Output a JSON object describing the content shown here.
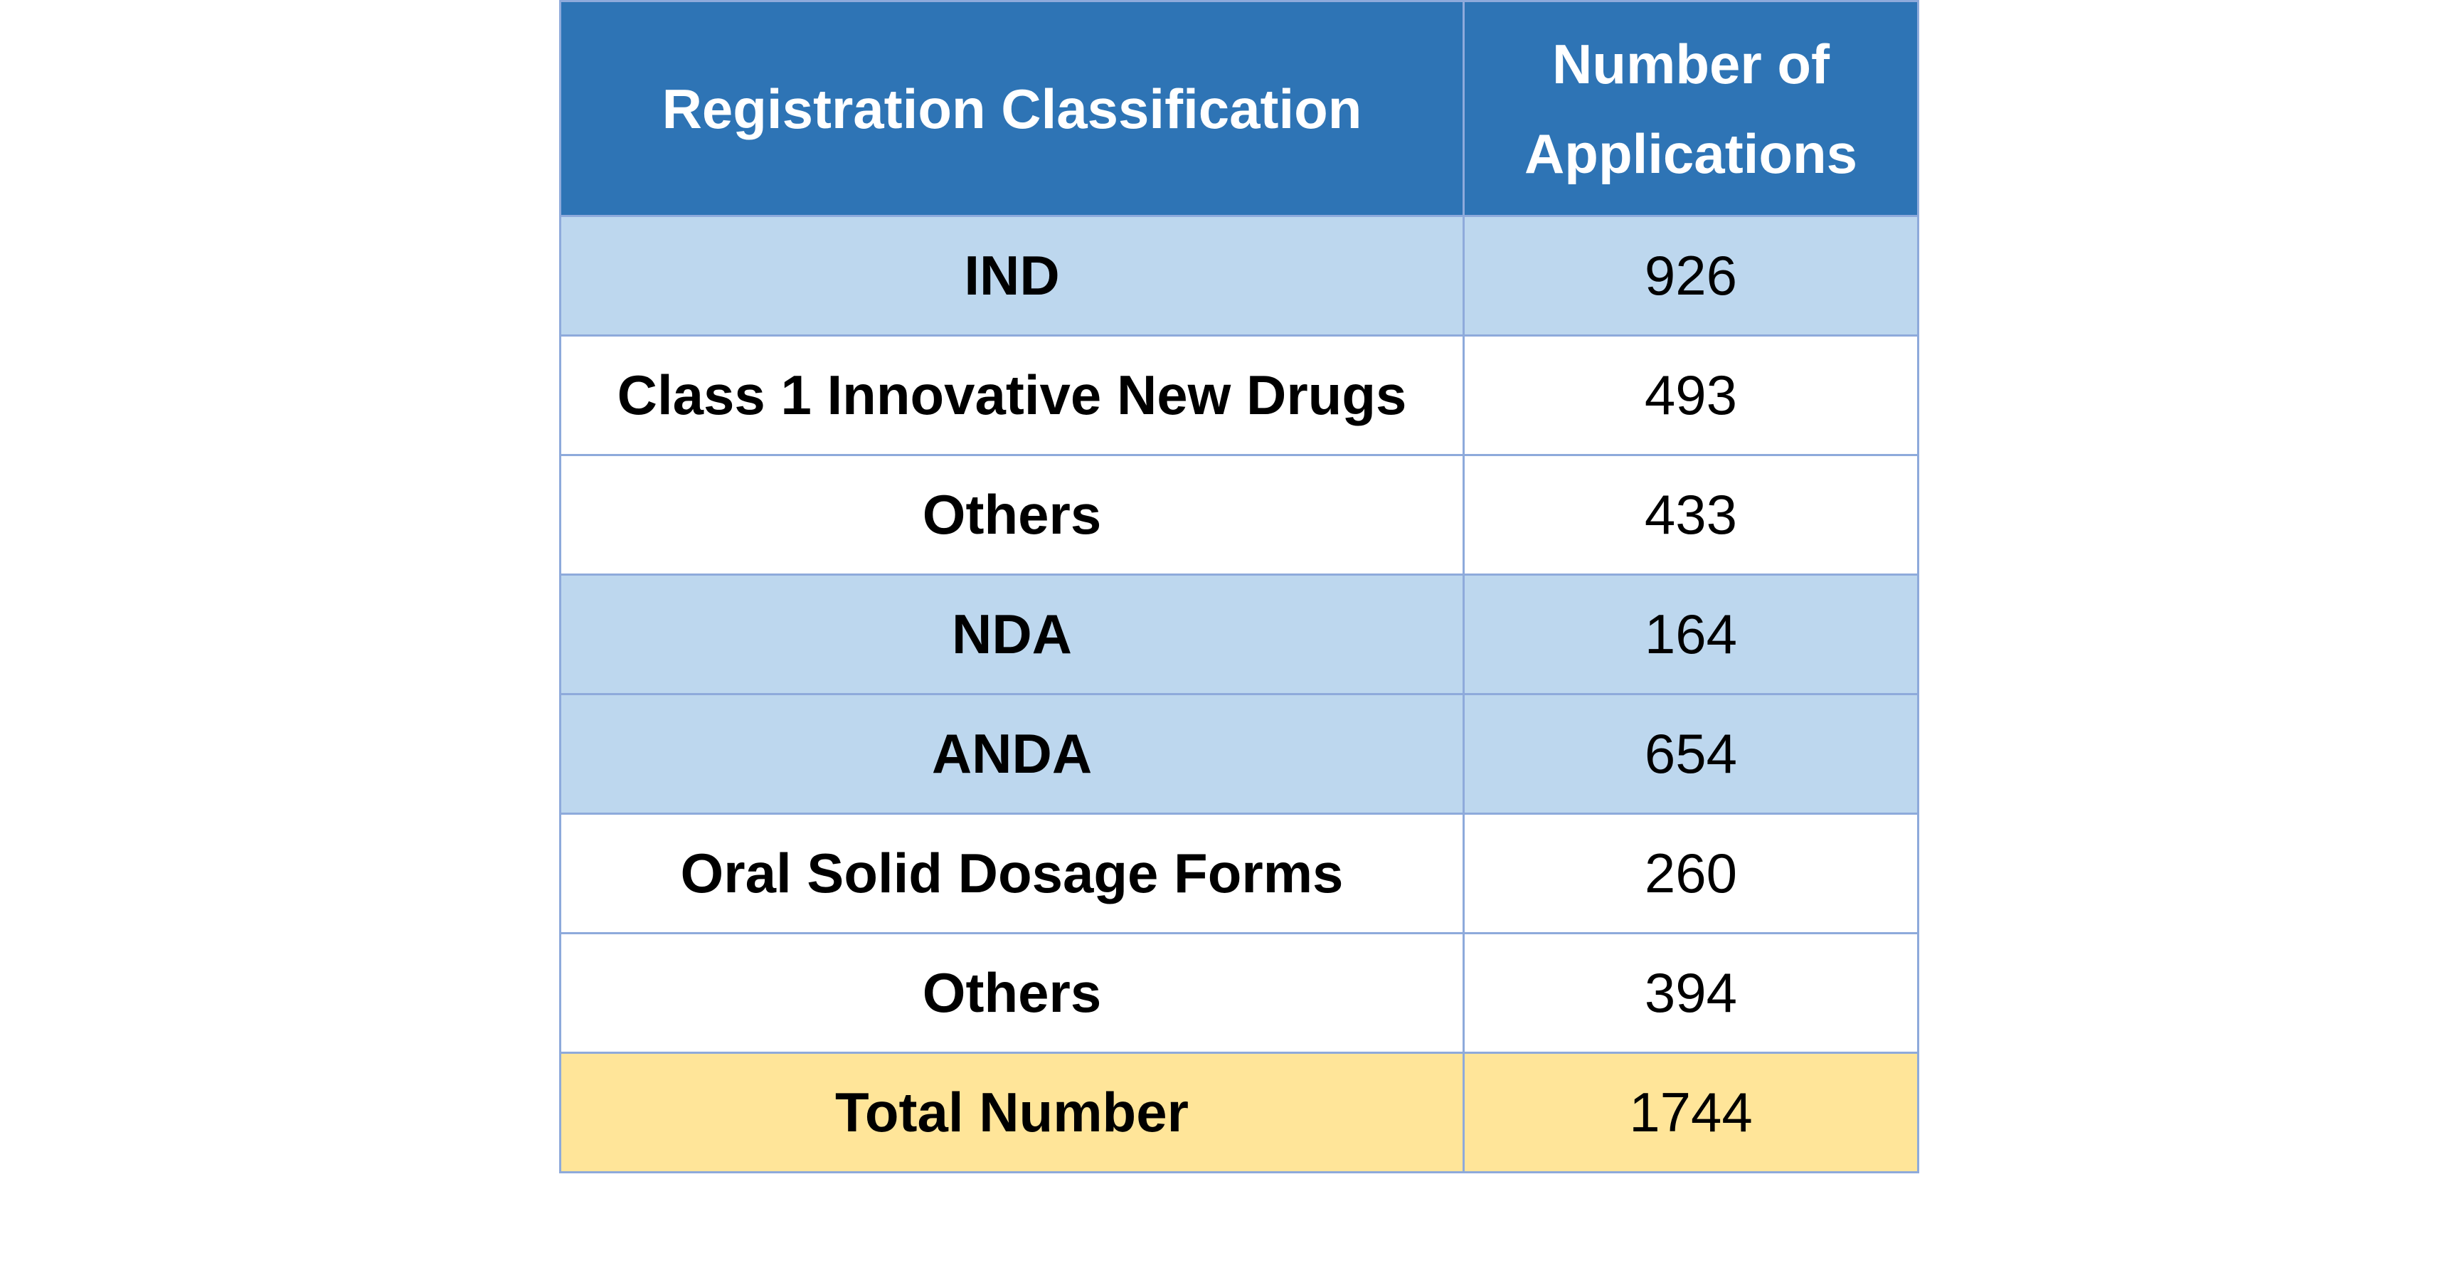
{
  "table": {
    "headers": {
      "classification": "Registration Classification",
      "count_line1": "Number of",
      "count_line2": "Applications"
    },
    "rows": [
      {
        "label": "IND",
        "value": "926",
        "shade": "#bdd7ee"
      },
      {
        "label": "Class 1 Innovative New Drugs",
        "value": "493",
        "shade": "#ffffff"
      },
      {
        "label": "Others",
        "value": "433",
        "shade": "#ffffff"
      },
      {
        "label": "NDA",
        "value": "164",
        "shade": "#bdd7ee"
      },
      {
        "label": "ANDA",
        "value": "654",
        "shade": "#bdd7ee"
      },
      {
        "label": "Oral Solid Dosage Forms",
        "value": "260",
        "shade": "#ffffff"
      },
      {
        "label": "Others",
        "value": "394",
        "shade": "#ffffff"
      }
    ],
    "total": {
      "label": "Total Number",
      "value": "1744",
      "shade": "#ffe599"
    }
  },
  "colors": {
    "header_bg": "#2e74b5",
    "header_text": "#ffffff",
    "border": "#8eaadb"
  }
}
